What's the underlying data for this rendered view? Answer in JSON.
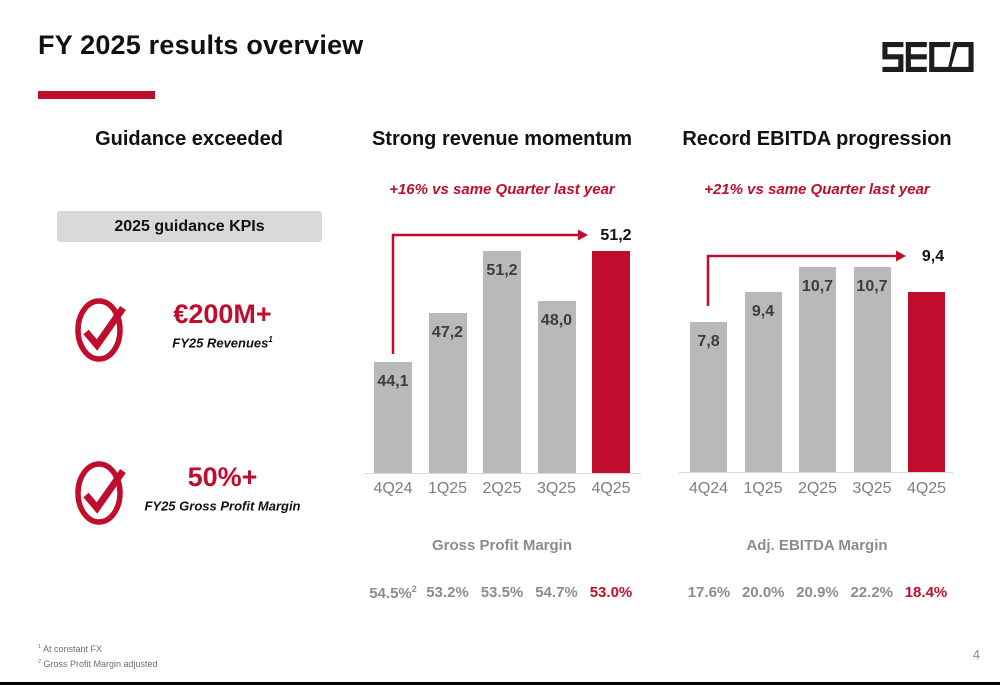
{
  "header": {
    "title": "FY 2025 results overview",
    "logo": "SECO"
  },
  "colors": {
    "accent_red": "#c00d2d",
    "bar_gray": "#b9b9b9",
    "kpi_box_bg": "#d9d9d9",
    "logo_dark": "#1d1d1b"
  },
  "left_panel": {
    "heading": "Guidance exceeded",
    "kpi_box_label": "2025 guidance KPIs",
    "items": [
      {
        "value": "€200M+",
        "label": "FY25 Revenues",
        "label_sup": "1"
      },
      {
        "value": "50%+",
        "label": "FY25 Gross Profit Margin",
        "label_sup": ""
      }
    ]
  },
  "chart_data": [
    {
      "type": "bar",
      "panel_heading": "Strong revenue momentum",
      "annotation": "+16% vs same Quarter last year",
      "categories": [
        "4Q24",
        "1Q25",
        "2Q25",
        "3Q25",
        "4Q25"
      ],
      "values": [
        44.1,
        47.2,
        51.2,
        48.0,
        51.2
      ],
      "value_labels": [
        "44,1",
        "47,2",
        "51,2",
        "48,0",
        "51,2"
      ],
      "highlight_index": 4,
      "ylim": [
        37,
        52
      ],
      "grid": false,
      "footer": {
        "label": "Gross Profit Margin",
        "values": [
          "54.5%",
          "53.2%",
          "53.5%",
          "54.7%",
          "53.0%"
        ],
        "sups": [
          "2",
          "",
          "",
          "",
          ""
        ]
      }
    },
    {
      "type": "bar",
      "panel_heading": "Record EBITDA progression",
      "annotation": "+21% vs same Quarter last year",
      "categories": [
        "4Q24",
        "1Q25",
        "2Q25",
        "3Q25",
        "4Q25"
      ],
      "values": [
        7.8,
        9.4,
        10.7,
        10.7,
        9.4
      ],
      "value_labels": [
        "7,8",
        "9,4",
        "10,7",
        "10,7",
        "9,4"
      ],
      "highlight_index": 4,
      "ylim": [
        0,
        11.2
      ],
      "grid": false,
      "footer": {
        "label": "Adj. EBITDA Margin",
        "values": [
          "17.6%",
          "20.0%",
          "20.9%",
          "22.2%",
          "18.4%"
        ],
        "sups": [
          "",
          "",
          "",
          "",
          ""
        ]
      }
    }
  ],
  "footnotes": [
    {
      "sup": "1",
      "text": "At constant FX"
    },
    {
      "sup": "2",
      "text": "Gross Profit Margin adjusted"
    }
  ],
  "page_number": "4"
}
